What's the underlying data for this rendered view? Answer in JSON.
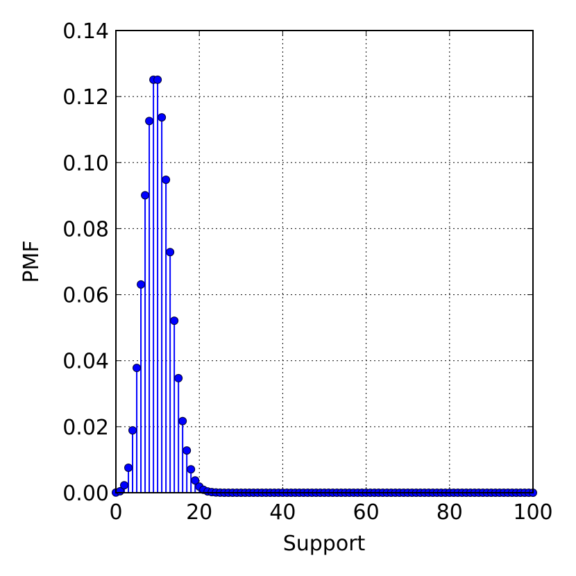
{
  "chart_data": {
    "type": "stem",
    "xlabel": "Support",
    "ylabel": "PMF",
    "color": "#0000ff",
    "edgecolor": "#000033",
    "x": [
      0,
      1,
      2,
      3,
      4,
      5,
      6,
      7,
      8,
      9,
      10,
      11,
      12,
      13,
      14,
      15,
      16,
      17,
      18,
      19,
      20,
      21,
      22,
      23,
      24,
      25,
      26,
      27,
      28,
      29,
      30,
      31,
      32,
      33,
      34,
      35,
      36,
      37,
      38,
      39,
      40,
      41,
      42,
      43,
      44,
      45,
      46,
      47,
      48,
      49,
      50,
      51,
      52,
      53,
      54,
      55,
      56,
      57,
      58,
      59,
      60,
      61,
      62,
      63,
      64,
      65,
      66,
      67,
      68,
      69,
      70,
      71,
      72,
      73,
      74,
      75,
      76,
      77,
      78,
      79,
      80,
      81,
      82,
      83,
      84,
      85,
      86,
      87,
      88,
      89,
      90,
      91,
      92,
      93,
      94,
      95,
      96,
      97,
      98,
      99,
      100
    ],
    "values": [
      4.54e-05,
      0.000454,
      0.00227,
      0.00757,
      0.0189,
      0.0378,
      0.0631,
      0.0901,
      0.1126,
      0.1251,
      0.1251,
      0.1137,
      0.0948,
      0.0729,
      0.0521,
      0.0347,
      0.0217,
      0.0128,
      0.00709,
      0.00373,
      0.00187,
      0.000889,
      0.000404,
      0.000176,
      7.32e-05,
      2.93e-05,
      0,
      0,
      0,
      0,
      0,
      0,
      0,
      0,
      0,
      0,
      0,
      0,
      0,
      0,
      0,
      0,
      0,
      0,
      0,
      0,
      0,
      0,
      0,
      0,
      0,
      0,
      0,
      0,
      0,
      0,
      0,
      0,
      0,
      0,
      0,
      0,
      0,
      0,
      0,
      0,
      0,
      0,
      0,
      0,
      0,
      0,
      0,
      0,
      0,
      0,
      0,
      0,
      0,
      0,
      0,
      0,
      0,
      0,
      0,
      0,
      0,
      0,
      0,
      0,
      0,
      0,
      0,
      0,
      0,
      0,
      0,
      0,
      0,
      0,
      0
    ],
    "xlim": [
      0,
      100
    ],
    "xticks": [
      0,
      20,
      40,
      60,
      80,
      100
    ],
    "ylim": [
      0,
      0.14
    ],
    "yticks": [
      {
        "value": 0,
        "label": "0.00"
      },
      0.02,
      0.04,
      0.06,
      0.08,
      {
        "value": 0.1,
        "label": "0.10"
      },
      0.12,
      0.14
    ],
    "grid": true
  }
}
